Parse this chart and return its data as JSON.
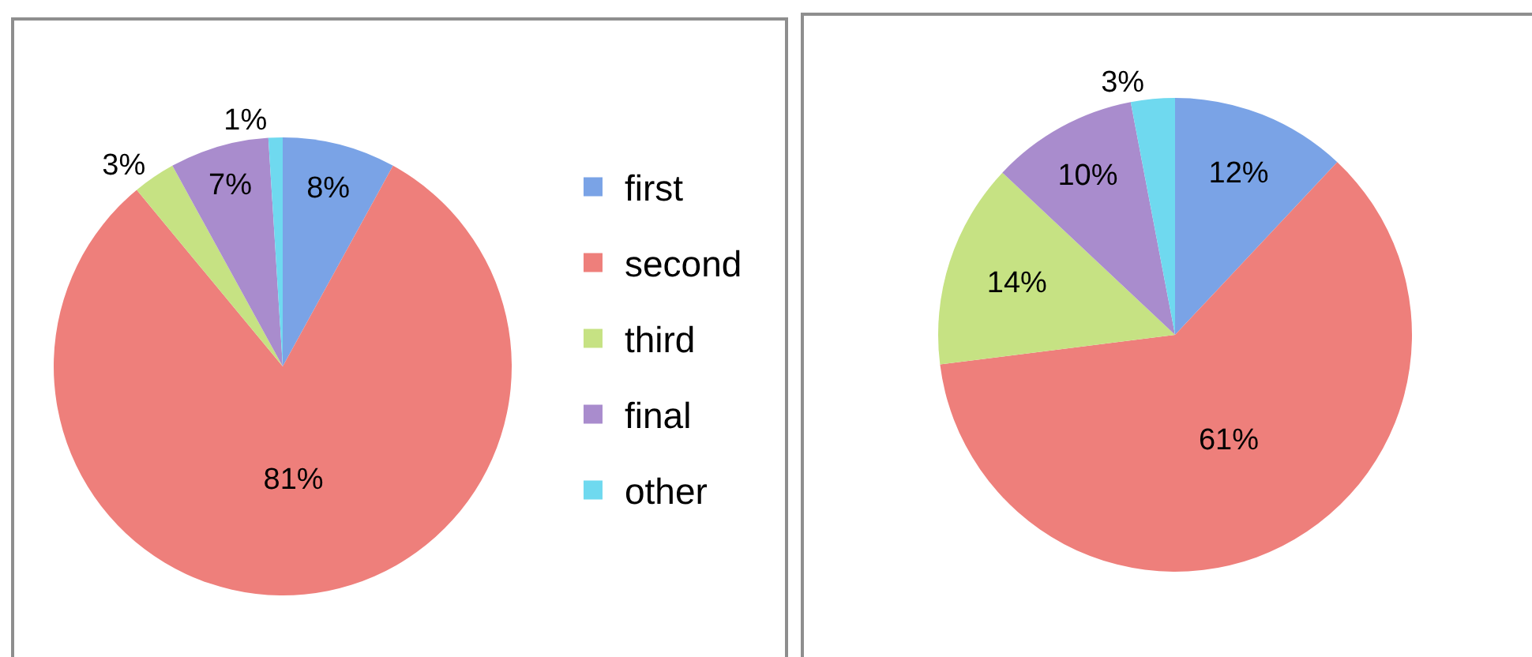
{
  "chart_data": [
    {
      "type": "pie",
      "categories": [
        "first",
        "second",
        "third",
        "final",
        "other"
      ],
      "values": [
        8,
        81,
        3,
        7,
        1
      ],
      "colors": [
        "#7aa3e6",
        "#ee7f7b",
        "#c6e283",
        "#a98ccd",
        "#6fd9ef"
      ],
      "value_labels": [
        "8%",
        "81%",
        "3%",
        "7%",
        "1%"
      ],
      "legend": "right"
    },
    {
      "type": "pie",
      "categories": [
        null,
        null,
        null,
        null,
        null
      ],
      "values": [
        12,
        61,
        14,
        10,
        3
      ],
      "colors": [
        "#7aa3e6",
        "#ee7f7b",
        "#c6e283",
        "#a98ccd",
        "#6fd9ef"
      ],
      "value_labels": [
        "12%",
        "61%",
        "14%",
        "10%",
        "3%"
      ]
    }
  ]
}
